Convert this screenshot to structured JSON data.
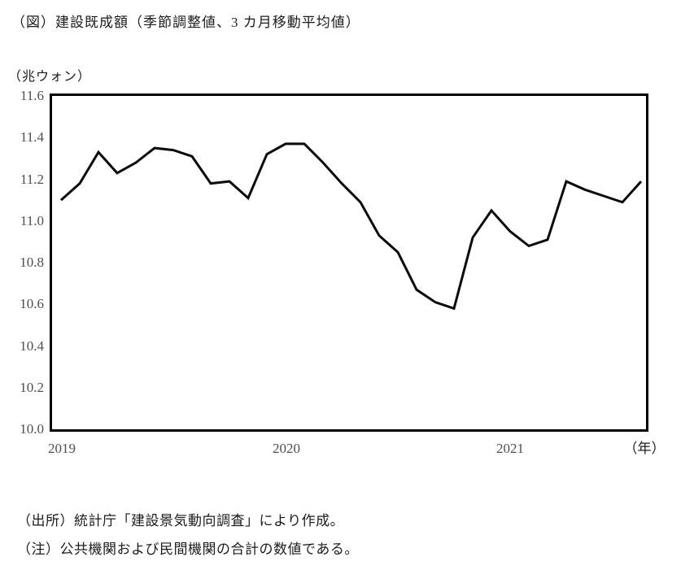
{
  "title": "（図）建設既成額（季節調整値、3 カ月移動平均値）",
  "y_axis_unit": "（兆ウォン）",
  "x_axis_unit": "（年）",
  "source_note": "（出所）統計庁「建設景気動向調査」により作成。",
  "note": "（注）公共機関および民間機関の合計の数値である。",
  "chart_data": {
    "type": "line",
    "title": "建設既成額（季節調整値、3カ月移動平均値）",
    "ylabel": "兆ウォン",
    "xlabel": "年",
    "x": [
      "2019-01",
      "2019-02",
      "2019-03",
      "2019-04",
      "2019-05",
      "2019-06",
      "2019-07",
      "2019-08",
      "2019-09",
      "2019-10",
      "2019-11",
      "2019-12",
      "2020-01",
      "2020-02",
      "2020-03",
      "2020-04",
      "2020-05",
      "2020-06",
      "2020-07",
      "2020-08",
      "2020-09",
      "2020-10",
      "2020-11",
      "2020-12",
      "2021-01",
      "2021-02",
      "2021-03",
      "2021-04",
      "2021-05",
      "2021-06",
      "2021-07",
      "2021-08"
    ],
    "values": [
      11.1,
      11.18,
      11.33,
      11.23,
      11.28,
      11.35,
      11.34,
      11.31,
      11.18,
      11.19,
      11.11,
      11.32,
      11.37,
      11.37,
      11.28,
      11.18,
      11.09,
      10.93,
      10.85,
      10.67,
      10.61,
      10.58,
      10.92,
      11.05,
      10.95,
      10.88,
      10.91,
      11.19,
      11.15,
      11.12,
      11.09,
      11.19
    ],
    "x_tick_labels": [
      "2019",
      "2020",
      "2021"
    ],
    "y_tick_labels": [
      "11.6",
      "11.4",
      "11.2",
      "11.0",
      "10.8",
      "10.6",
      "10.4",
      "10.2",
      "10.0"
    ],
    "ylim": [
      10.0,
      11.6
    ],
    "grid": false,
    "legend": "none",
    "line_color": "#0a0a0a",
    "frame_color": "#000000",
    "tick_label_color": "#4f4f4f"
  }
}
